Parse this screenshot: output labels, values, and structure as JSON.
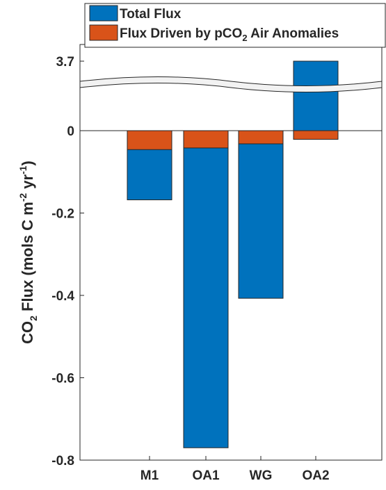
{
  "chart_data": {
    "type": "bar",
    "categories": [
      "M1",
      "OA1",
      "WG",
      "OA2"
    ],
    "series": [
      {
        "name": "Total Flux",
        "color": "#0072BD",
        "values": [
          -0.168,
          -0.77,
          -0.407,
          3.7
        ]
      },
      {
        "name": "Flux Driven by pCO2 Air Anomalies",
        "color": "#D95319",
        "values": [
          -0.046,
          -0.042,
          -0.032,
          -0.021
        ]
      }
    ],
    "ylim": [
      -0.8,
      3.7
    ],
    "axis_break": true,
    "yticks": [
      {
        "value": -0.8,
        "label": "-0.8"
      },
      {
        "value": -0.6,
        "label": "-0.6"
      },
      {
        "value": -0.4,
        "label": "-0.4"
      },
      {
        "value": -0.2,
        "label": "-0.2"
      },
      {
        "value": 0,
        "label": "0"
      },
      {
        "value": 3.7,
        "label": "3.7"
      }
    ],
    "ylabel": {
      "part1": "CO",
      "sub": "2",
      "part2": " Flux (mols C m",
      "sup1": "-2",
      "part3": " yr",
      "sup2": "-1",
      "part4": ")"
    },
    "legend": {
      "position": "top",
      "entries": [
        {
          "text": "Total Flux"
        },
        {
          "text_main": "Flux Driven by pCO",
          "text_sub": "2",
          "text_tail": " Air Anomalies"
        }
      ]
    },
    "grid": false
  }
}
